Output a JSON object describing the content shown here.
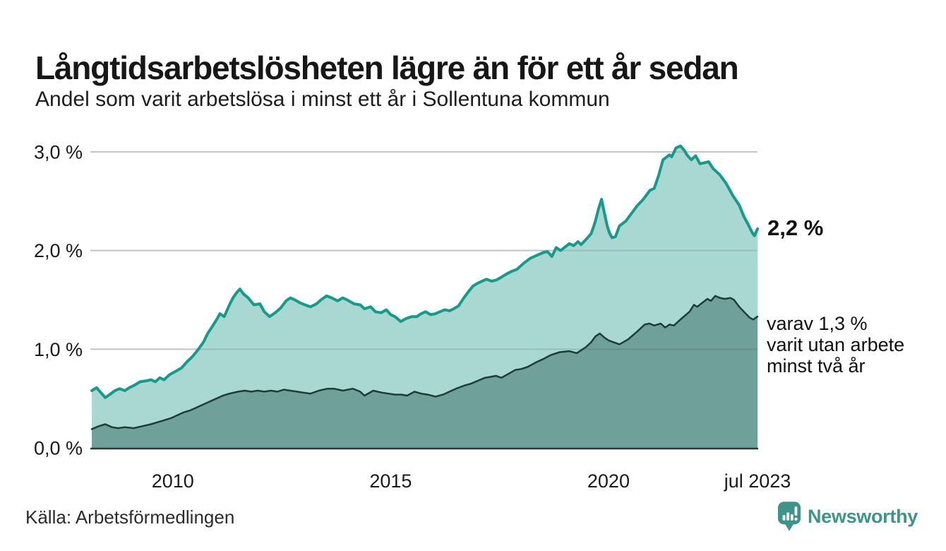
{
  "header": {
    "title": "Långtidsarbetslösheten lägre än för ett år sedan",
    "subtitle": "Andel som varit arbetslösa i minst ett år i Sollentuna kommun"
  },
  "chart_data": {
    "type": "area",
    "title": "Långtidsarbetslösheten lägre än för ett år sedan",
    "subtitle": "Andel som varit arbetslösa i minst ett år i Sollentuna kommun",
    "unit": "%",
    "grid": true,
    "legend_position": "none",
    "x_range": [
      2008.14,
      2023.42
    ],
    "ylim": [
      0,
      3.0
    ],
    "x_ticks": [
      {
        "x": 2010,
        "label": "2010"
      },
      {
        "x": 2015,
        "label": "2015"
      },
      {
        "x": 2020,
        "label": "2020"
      },
      {
        "x": 2023.42,
        "label": "jul 2023"
      }
    ],
    "y_ticks": [
      {
        "v": 0,
        "label": "0,0 %"
      },
      {
        "v": 1,
        "label": "1,0 %"
      },
      {
        "v": 2,
        "label": "2,0 %"
      },
      {
        "v": 3,
        "label": "3,0 %"
      }
    ],
    "series": [
      {
        "name": "Andel som varit arbetslösa minst ett år",
        "color": "#17998b",
        "fill": "#a9d7d1",
        "line_width": 4,
        "end_value": 2.2,
        "points": [
          [
            2008.14,
            0.58
          ],
          [
            2008.25,
            0.61
          ],
          [
            2008.33,
            0.57
          ],
          [
            2008.45,
            0.51
          ],
          [
            2008.55,
            0.54
          ],
          [
            2008.67,
            0.58
          ],
          [
            2008.78,
            0.6
          ],
          [
            2008.9,
            0.58
          ],
          [
            2009.0,
            0.61
          ],
          [
            2009.1,
            0.63
          ],
          [
            2009.25,
            0.67
          ],
          [
            2009.4,
            0.68
          ],
          [
            2009.5,
            0.69
          ],
          [
            2009.6,
            0.67
          ],
          [
            2009.7,
            0.71
          ],
          [
            2009.8,
            0.69
          ],
          [
            2009.92,
            0.74
          ],
          [
            2010.08,
            0.78
          ],
          [
            2010.2,
            0.81
          ],
          [
            2010.32,
            0.87
          ],
          [
            2010.44,
            0.92
          ],
          [
            2010.57,
            0.99
          ],
          [
            2010.7,
            1.07
          ],
          [
            2010.8,
            1.16
          ],
          [
            2010.92,
            1.24
          ],
          [
            2011.02,
            1.31
          ],
          [
            2011.08,
            1.36
          ],
          [
            2011.18,
            1.33
          ],
          [
            2011.3,
            1.45
          ],
          [
            2011.38,
            1.52
          ],
          [
            2011.46,
            1.57
          ],
          [
            2011.54,
            1.61
          ],
          [
            2011.62,
            1.56
          ],
          [
            2011.73,
            1.52
          ],
          [
            2011.86,
            1.45
          ],
          [
            2012.0,
            1.46
          ],
          [
            2012.1,
            1.38
          ],
          [
            2012.22,
            1.33
          ],
          [
            2012.35,
            1.37
          ],
          [
            2012.48,
            1.42
          ],
          [
            2012.6,
            1.49
          ],
          [
            2012.7,
            1.52
          ],
          [
            2012.8,
            1.5
          ],
          [
            2012.92,
            1.47
          ],
          [
            2013.03,
            1.45
          ],
          [
            2013.16,
            1.43
          ],
          [
            2013.3,
            1.46
          ],
          [
            2013.4,
            1.5
          ],
          [
            2013.53,
            1.54
          ],
          [
            2013.65,
            1.52
          ],
          [
            2013.78,
            1.49
          ],
          [
            2013.9,
            1.52
          ],
          [
            2014.0,
            1.5
          ],
          [
            2014.16,
            1.46
          ],
          [
            2014.3,
            1.45
          ],
          [
            2014.4,
            1.41
          ],
          [
            2014.54,
            1.43
          ],
          [
            2014.65,
            1.38
          ],
          [
            2014.78,
            1.37
          ],
          [
            2014.9,
            1.4
          ],
          [
            2015.0,
            1.35
          ],
          [
            2015.1,
            1.33
          ],
          [
            2015.23,
            1.28
          ],
          [
            2015.35,
            1.31
          ],
          [
            2015.48,
            1.33
          ],
          [
            2015.6,
            1.33
          ],
          [
            2015.7,
            1.36
          ],
          [
            2015.8,
            1.38
          ],
          [
            2015.92,
            1.35
          ],
          [
            2016.03,
            1.36
          ],
          [
            2016.13,
            1.38
          ],
          [
            2016.24,
            1.4
          ],
          [
            2016.35,
            1.39
          ],
          [
            2016.45,
            1.41
          ],
          [
            2016.56,
            1.44
          ],
          [
            2016.68,
            1.52
          ],
          [
            2016.78,
            1.58
          ],
          [
            2016.89,
            1.64
          ],
          [
            2017.0,
            1.67
          ],
          [
            2017.1,
            1.69
          ],
          [
            2017.2,
            1.71
          ],
          [
            2017.32,
            1.69
          ],
          [
            2017.42,
            1.7
          ],
          [
            2017.54,
            1.73
          ],
          [
            2017.65,
            1.76
          ],
          [
            2017.78,
            1.79
          ],
          [
            2017.9,
            1.81
          ],
          [
            2018.05,
            1.87
          ],
          [
            2018.2,
            1.92
          ],
          [
            2018.35,
            1.95
          ],
          [
            2018.5,
            1.98
          ],
          [
            2018.6,
            1.99
          ],
          [
            2018.7,
            1.94
          ],
          [
            2018.8,
            2.03
          ],
          [
            2018.9,
            2.0
          ],
          [
            2019.1,
            2.07
          ],
          [
            2019.2,
            2.05
          ],
          [
            2019.3,
            2.09
          ],
          [
            2019.37,
            2.06
          ],
          [
            2019.5,
            2.12
          ],
          [
            2019.6,
            2.17
          ],
          [
            2019.65,
            2.23
          ],
          [
            2019.7,
            2.3
          ],
          [
            2019.77,
            2.42
          ],
          [
            2019.84,
            2.52
          ],
          [
            2019.9,
            2.39
          ],
          [
            2019.97,
            2.25
          ],
          [
            2020.02,
            2.18
          ],
          [
            2020.08,
            2.13
          ],
          [
            2020.16,
            2.14
          ],
          [
            2020.25,
            2.25
          ],
          [
            2020.4,
            2.3
          ],
          [
            2020.5,
            2.36
          ],
          [
            2020.65,
            2.45
          ],
          [
            2020.8,
            2.52
          ],
          [
            2020.95,
            2.61
          ],
          [
            2021.05,
            2.63
          ],
          [
            2021.15,
            2.76
          ],
          [
            2021.25,
            2.92
          ],
          [
            2021.4,
            2.97
          ],
          [
            2021.45,
            2.95
          ],
          [
            2021.55,
            3.04
          ],
          [
            2021.65,
            3.06
          ],
          [
            2021.75,
            3.01
          ],
          [
            2021.8,
            2.97
          ],
          [
            2021.9,
            2.92
          ],
          [
            2022.0,
            2.96
          ],
          [
            2022.1,
            2.88
          ],
          [
            2022.3,
            2.9
          ],
          [
            2022.4,
            2.83
          ],
          [
            2022.5,
            2.79
          ],
          [
            2022.55,
            2.77
          ],
          [
            2022.7,
            2.68
          ],
          [
            2022.85,
            2.56
          ],
          [
            2023.0,
            2.46
          ],
          [
            2023.1,
            2.35
          ],
          [
            2023.2,
            2.27
          ],
          [
            2023.3,
            2.18
          ],
          [
            2023.35,
            2.15
          ],
          [
            2023.42,
            2.22
          ]
        ]
      },
      {
        "name": "varav arbetslösa minst två år",
        "color": "#1e3c38",
        "fill": "#6fa09a",
        "line_width": 2.5,
        "end_value": 1.3,
        "points": [
          [
            2008.14,
            0.19
          ],
          [
            2008.3,
            0.22
          ],
          [
            2008.45,
            0.24
          ],
          [
            2008.6,
            0.21
          ],
          [
            2008.75,
            0.2
          ],
          [
            2008.9,
            0.21
          ],
          [
            2009.1,
            0.2
          ],
          [
            2009.3,
            0.22
          ],
          [
            2009.5,
            0.24
          ],
          [
            2009.65,
            0.26
          ],
          [
            2009.8,
            0.28
          ],
          [
            2009.95,
            0.3
          ],
          [
            2010.1,
            0.33
          ],
          [
            2010.25,
            0.36
          ],
          [
            2010.4,
            0.38
          ],
          [
            2010.55,
            0.41
          ],
          [
            2010.7,
            0.44
          ],
          [
            2010.85,
            0.47
          ],
          [
            2011.0,
            0.5
          ],
          [
            2011.15,
            0.53
          ],
          [
            2011.3,
            0.55
          ],
          [
            2011.5,
            0.57
          ],
          [
            2011.65,
            0.58
          ],
          [
            2011.8,
            0.57
          ],
          [
            2011.95,
            0.58
          ],
          [
            2012.1,
            0.57
          ],
          [
            2012.25,
            0.58
          ],
          [
            2012.4,
            0.57
          ],
          [
            2012.55,
            0.59
          ],
          [
            2012.7,
            0.58
          ],
          [
            2012.85,
            0.57
          ],
          [
            2013.0,
            0.56
          ],
          [
            2013.16,
            0.55
          ],
          [
            2013.35,
            0.58
          ],
          [
            2013.55,
            0.6
          ],
          [
            2013.7,
            0.6
          ],
          [
            2013.9,
            0.58
          ],
          [
            2014.13,
            0.6
          ],
          [
            2014.3,
            0.57
          ],
          [
            2014.4,
            0.53
          ],
          [
            2014.6,
            0.58
          ],
          [
            2014.8,
            0.56
          ],
          [
            2014.95,
            0.55
          ],
          [
            2015.1,
            0.54
          ],
          [
            2015.25,
            0.54
          ],
          [
            2015.38,
            0.53
          ],
          [
            2015.55,
            0.57
          ],
          [
            2015.7,
            0.55
          ],
          [
            2015.85,
            0.54
          ],
          [
            2016.03,
            0.52
          ],
          [
            2016.2,
            0.54
          ],
          [
            2016.35,
            0.57
          ],
          [
            2016.5,
            0.6
          ],
          [
            2016.68,
            0.63
          ],
          [
            2016.84,
            0.65
          ],
          [
            2017.0,
            0.68
          ],
          [
            2017.16,
            0.71
          ],
          [
            2017.3,
            0.72
          ],
          [
            2017.42,
            0.73
          ],
          [
            2017.54,
            0.71
          ],
          [
            2017.7,
            0.75
          ],
          [
            2017.86,
            0.79
          ],
          [
            2018.0,
            0.8
          ],
          [
            2018.14,
            0.82
          ],
          [
            2018.35,
            0.87
          ],
          [
            2018.5,
            0.9
          ],
          [
            2018.67,
            0.94
          ],
          [
            2018.88,
            0.97
          ],
          [
            2019.1,
            0.98
          ],
          [
            2019.27,
            0.96
          ],
          [
            2019.48,
            1.02
          ],
          [
            2019.6,
            1.07
          ],
          [
            2019.7,
            1.13
          ],
          [
            2019.8,
            1.16
          ],
          [
            2019.9,
            1.12
          ],
          [
            2020.0,
            1.09
          ],
          [
            2020.12,
            1.07
          ],
          [
            2020.25,
            1.05
          ],
          [
            2020.45,
            1.1
          ],
          [
            2020.66,
            1.18
          ],
          [
            2020.83,
            1.25
          ],
          [
            2020.94,
            1.26
          ],
          [
            2021.05,
            1.24
          ],
          [
            2021.2,
            1.26
          ],
          [
            2021.3,
            1.22
          ],
          [
            2021.4,
            1.25
          ],
          [
            2021.5,
            1.24
          ],
          [
            2021.6,
            1.28
          ],
          [
            2021.7,
            1.32
          ],
          [
            2021.86,
            1.38
          ],
          [
            2021.96,
            1.45
          ],
          [
            2022.04,
            1.43
          ],
          [
            2022.12,
            1.46
          ],
          [
            2022.27,
            1.51
          ],
          [
            2022.35,
            1.49
          ],
          [
            2022.45,
            1.54
          ],
          [
            2022.56,
            1.52
          ],
          [
            2022.67,
            1.51
          ],
          [
            2022.8,
            1.52
          ],
          [
            2022.88,
            1.5
          ],
          [
            2023.0,
            1.43
          ],
          [
            2023.13,
            1.37
          ],
          [
            2023.24,
            1.32
          ],
          [
            2023.32,
            1.3
          ],
          [
            2023.42,
            1.33
          ]
        ]
      }
    ],
    "annotations": {
      "end_value_label": "2,2 %",
      "series2_label": "varav 1,3 %\nvarit utan arbete\nminst två år"
    }
  },
  "footer": {
    "source": "Källa: Arbetsförmedlingen",
    "brand": "Newsworthy",
    "brand_color": "#3e948b"
  }
}
